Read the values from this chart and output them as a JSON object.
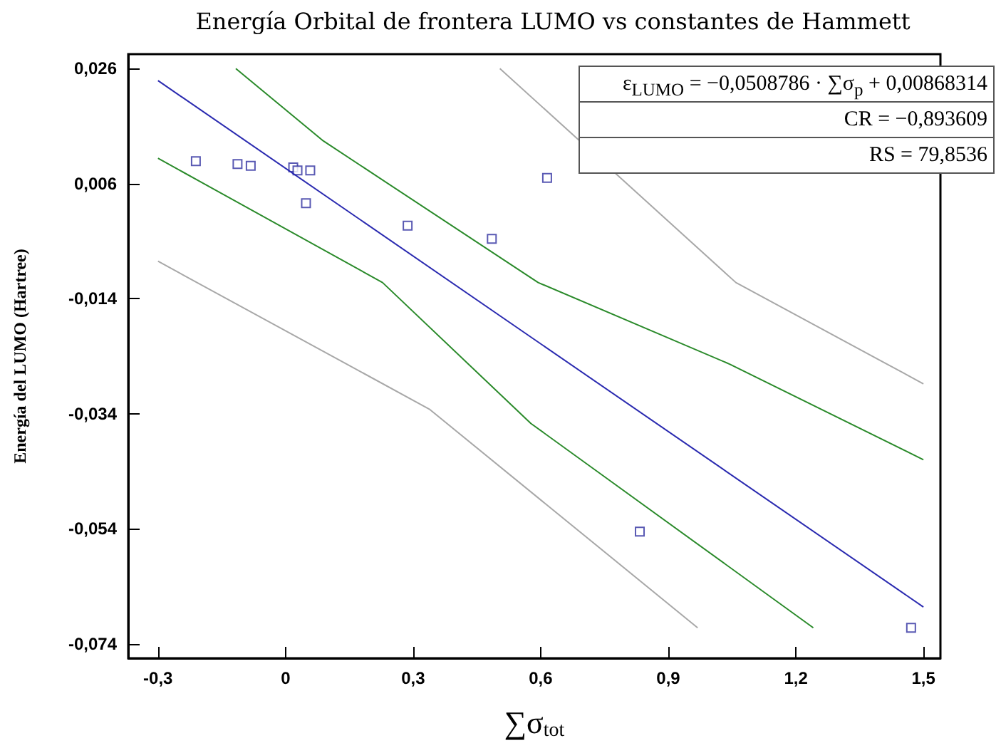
{
  "chart_data": {
    "type": "scatter",
    "title": "Energía Orbital de frontera LUMO vs constantes de Hammett",
    "xlabel": "∑σ$_{tot}$",
    "ylabel": "Energía del LUMO (Hartree)",
    "xlim": [
      -0.37,
      1.54
    ],
    "ylim": [
      -0.0765,
      0.0285
    ],
    "xticks": [
      {
        "value": -0.3,
        "label": "-0,3"
      },
      {
        "value": 0,
        "label": "0"
      },
      {
        "value": 0.3,
        "label": "0,3"
      },
      {
        "value": 0.6,
        "label": "0,6"
      },
      {
        "value": 0.9,
        "label": "0,9"
      },
      {
        "value": 1.2,
        "label": "1,2"
      },
      {
        "value": 1.5,
        "label": "1,5"
      }
    ],
    "yticks": [
      {
        "value": -0.074,
        "label": "-0,074"
      },
      {
        "value": -0.054,
        "label": "-0,054"
      },
      {
        "value": -0.034,
        "label": "-0,034"
      },
      {
        "value": -0.014,
        "label": "-0,014"
      },
      {
        "value": 0.006,
        "label": "0,006"
      },
      {
        "value": 0.026,
        "label": "0,026"
      }
    ],
    "grid": false,
    "annotations": [
      "ε$_{LUMO}$ = −0,0508786 · ∑σ$_{p}$ + 0,00868314",
      "CR = −0,893609",
      "RS = 79,8536"
    ],
    "series": [
      {
        "type": "line",
        "marker": "none",
        "color": "#a8a8a8",
        "x": [
          0.504,
          1.059,
          1.5
        ],
        "values": [
          0.026,
          -0.0112,
          -0.0288
        ]
      },
      {
        "type": "line",
        "marker": "none",
        "color": "#a8a8a8",
        "x": [
          -0.3,
          0.338,
          0.969
        ],
        "values": [
          -0.0075,
          -0.0332,
          -0.0712
        ]
      },
      {
        "type": "line",
        "marker": "none",
        "color": "#2a8a2a",
        "x": [
          -0.117,
          0.089,
          0.594,
          1.045,
          1.5
        ],
        "values": [
          0.026,
          0.0134,
          -0.0112,
          -0.0254,
          -0.042
        ]
      },
      {
        "type": "line",
        "marker": "none",
        "color": "#2a8a2a",
        "x": [
          -0.3,
          0.228,
          0.577,
          1.241
        ],
        "values": [
          0.0104,
          -0.0112,
          -0.0357,
          -0.0712
        ]
      },
      {
        "type": "line",
        "marker": "none",
        "color": "#2a2ab0",
        "x": [
          -0.3,
          1.5
        ],
        "values": [
          0.0239,
          -0.0676
        ]
      },
      {
        "marker": "square",
        "color": "#3030a0",
        "x": [
          -0.211,
          -0.113,
          -0.082,
          0.018,
          0.028,
          0.058,
          0.048,
          0.287,
          0.485,
          0.615,
          0.833,
          1.471
        ],
        "values": [
          0.0099,
          0.0094,
          0.0091,
          0.0088,
          0.0083,
          0.0083,
          0.0026,
          -0.0013,
          -0.0036,
          0.007,
          -0.0545,
          -0.0712
        ]
      }
    ]
  }
}
